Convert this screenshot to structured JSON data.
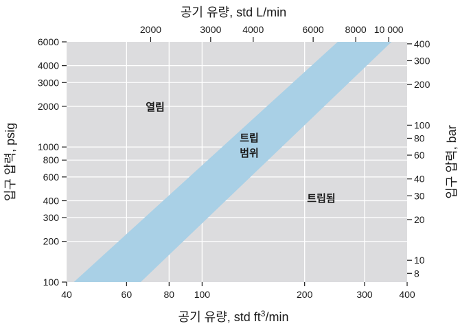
{
  "chart_data": {
    "type": "area",
    "title": "",
    "x_bottom": {
      "label": "공기 유량, std ft³/min",
      "label_main": "공기 유량, std ft",
      "label_sup": "3",
      "label_tail": "/min",
      "scale": "log",
      "range": [
        40,
        400
      ],
      "ticks": [
        40,
        60,
        80,
        100,
        200,
        300,
        400
      ],
      "tick_labels": [
        "40",
        "60",
        "80",
        "100",
        "200",
        "300",
        "400"
      ],
      "grid": [
        60,
        80,
        100,
        200,
        300
      ]
    },
    "x_top": {
      "label": "공기 유량, std L/min",
      "scale": "log",
      "ticks": [
        2000,
        3000,
        4000,
        6000,
        8000,
        10000
      ],
      "tick_labels": [
        "2000",
        "3000",
        "4000",
        "6000",
        "8000",
        "10 000"
      ]
    },
    "y_left": {
      "label": "입구 압력, psig",
      "scale": "log",
      "range": [
        100,
        6000
      ],
      "ticks": [
        100,
        200,
        300,
        400,
        600,
        800,
        1000,
        2000,
        3000,
        4000,
        6000
      ],
      "tick_labels": [
        "100",
        "200",
        "300",
        "400",
        "600",
        "800",
        "1000",
        "2000",
        "3000",
        "4000",
        "6000"
      ],
      "grid": [
        200,
        300,
        400,
        600,
        800,
        1000,
        2000,
        3000,
        4000
      ]
    },
    "y_right": {
      "label": "입구 압력, bar",
      "scale": "log",
      "ticks": [
        8,
        10,
        20,
        30,
        40,
        60,
        80,
        100,
        200,
        300,
        400
      ],
      "tick_labels": [
        "8",
        "10",
        "20",
        "30",
        "40",
        "60",
        "80",
        "100",
        "200",
        "300",
        "400"
      ]
    },
    "band": {
      "name": "트립 범위",
      "color": "#a9d0e6",
      "lower_edge": [
        [
          66,
          100
        ],
        [
          360,
          6000
        ]
      ],
      "upper_edge": [
        [
          42,
          100
        ],
        [
          250,
          6000
        ]
      ]
    },
    "regions": [
      {
        "name": "열림"
      },
      {
        "name": "트립\n범위",
        "lines": [
          "트립",
          "범위"
        ]
      },
      {
        "name": "트립됨"
      }
    ],
    "colors": {
      "plot_background": "#dcdcde",
      "grid": "#ffffff",
      "band": "#a9d0e6"
    }
  }
}
